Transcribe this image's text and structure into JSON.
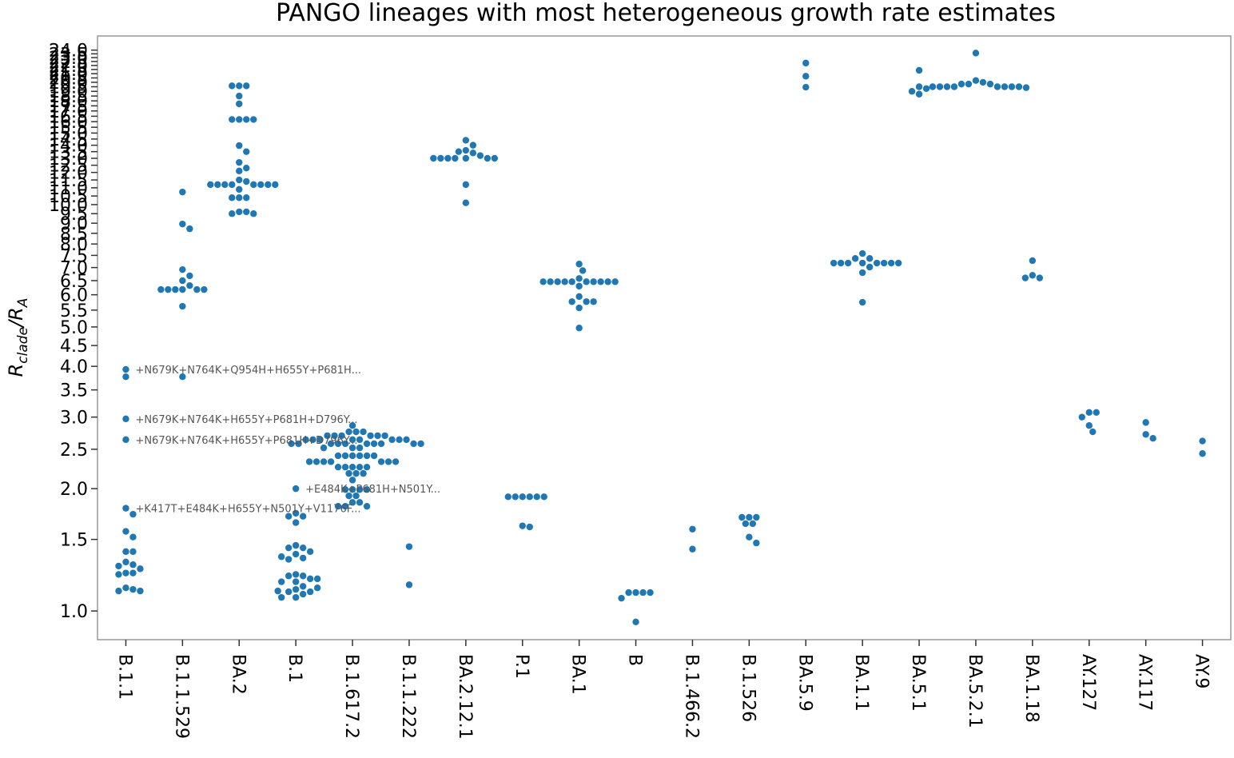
{
  "chart_data": {
    "type": "swarm",
    "title": "PANGO lineages with most heterogeneous growth rate estimates",
    "y_label_parts": [
      "R",
      "clade",
      "/R",
      "A"
    ],
    "color": "#1f77b4",
    "log_scale": true,
    "ylim": [
      0.85,
      26
    ],
    "yticks": [
      {
        "value": 1,
        "label": "1.0"
      },
      {
        "value": 1.5,
        "label": "1.5"
      },
      {
        "value": 2,
        "label": "2.0"
      },
      {
        "value": 2.5,
        "label": "2.5"
      },
      {
        "value": 3,
        "label": "3.0"
      },
      {
        "value": 3.5,
        "label": "3.5"
      },
      {
        "value": 4,
        "label": "4.0"
      },
      {
        "value": 4.5,
        "label": "4.5"
      },
      {
        "value": 5,
        "label": "5.0"
      },
      {
        "value": 5.5,
        "label": "5.5"
      },
      {
        "value": 6,
        "label": "6.0"
      },
      {
        "value": 6.5,
        "label": "6.5"
      },
      {
        "value": 7,
        "label": "7.0"
      },
      {
        "value": 7.5,
        "label": "7.5"
      },
      {
        "value": 8,
        "label": "8.0"
      },
      {
        "value": 8.5,
        "label": "8.5"
      },
      {
        "value": 9,
        "label": "9.0"
      },
      {
        "value": 9.5,
        "label": "9.5"
      },
      {
        "value": 10,
        "label": "10.0"
      },
      {
        "value": 10.5,
        "label": "10.5"
      },
      {
        "value": 11,
        "label": "11.0"
      },
      {
        "value": 11.5,
        "label": "11.5"
      },
      {
        "value": 12,
        "label": "12.0"
      },
      {
        "value": 12.5,
        "label": "12.5"
      },
      {
        "value": 13,
        "label": "13.0"
      },
      {
        "value": 13.5,
        "label": "13.5"
      },
      {
        "value": 14,
        "label": "14.0"
      },
      {
        "value": 14.5,
        "label": "14.5"
      },
      {
        "value": 15,
        "label": "15.0"
      },
      {
        "value": 15.5,
        "label": "15.5"
      },
      {
        "value": 16,
        "label": "16.0"
      },
      {
        "value": 16.5,
        "label": "16.5"
      },
      {
        "value": 17,
        "label": "17.0"
      },
      {
        "value": 17.5,
        "label": "17.5"
      },
      {
        "value": 18,
        "label": "18.0"
      },
      {
        "value": 18.5,
        "label": "18.5"
      },
      {
        "value": 19,
        "label": "19.0"
      },
      {
        "value": 19.5,
        "label": "19.5"
      },
      {
        "value": 20,
        "label": "20.0"
      },
      {
        "value": 20.5,
        "label": "20.5"
      },
      {
        "value": 21,
        "label": "21.0"
      },
      {
        "value": 21.5,
        "label": "21.5"
      },
      {
        "value": 22,
        "label": "22.0"
      },
      {
        "value": 22.5,
        "label": "22.5"
      },
      {
        "value": 23,
        "label": "23.0"
      },
      {
        "value": 23.5,
        "label": "23.5"
      },
      {
        "value": 24,
        "label": "24.0"
      }
    ],
    "categories": [
      "B.1.1",
      "B.1.1.529",
      "BA.2",
      "B.1",
      "B.1.617.2",
      "B.1.1.222",
      "BA.2.12.1",
      "P.1",
      "BA.1",
      "B",
      "B.1.466.2",
      "B.1.526",
      "BA.5.9",
      "BA.1.1",
      "BA.5.1",
      "BA.5.2.1",
      "BA.1.18",
      "AY.127",
      "AY.117",
      "AY.9"
    ],
    "values": [
      [
        3.93,
        3.77,
        2.97,
        2.64,
        1.79,
        1.73,
        1.57,
        1.52,
        1.4,
        1.4,
        1.32,
        1.3,
        1.29,
        1.27,
        1.24,
        1.24,
        1.23,
        1.14,
        1.13,
        1.12,
        1.12
      ],
      [
        10.74,
        8.96,
        8.72,
        6.92,
        6.68,
        6.5,
        6.32,
        6.18,
        6.18,
        6.18,
        6.18,
        6.18,
        6.18,
        5.62,
        3.77
      ],
      [
        19.6,
        19.6,
        19.6,
        18.5,
        17.7,
        16.2,
        16.2,
        16.2,
        16.2,
        13.97,
        13.5,
        12.7,
        12.3,
        12.1,
        11.5,
        11.4,
        11.2,
        11.2,
        11.2,
        11.2,
        11.2,
        11.2,
        11.2,
        11.2,
        10.9,
        10.4,
        10.4,
        10.4,
        9.6,
        9.6,
        9.5,
        9.5
      ],
      [
        2.0,
        1.74,
        1.71,
        1.71,
        1.65,
        1.45,
        1.43,
        1.43,
        1.4,
        1.38,
        1.35,
        1.34,
        1.23,
        1.22,
        1.22,
        1.2,
        1.18,
        1.18,
        1.15,
        1.13,
        1.115,
        1.115,
        1.1,
        1.08,
        1.08,
        1.12,
        1.14,
        1.2,
        1.36
      ],
      [
        2.86,
        2.76,
        2.76,
        2.76,
        2.7,
        2.7,
        2.7,
        2.7,
        2.7,
        2.7,
        2.64,
        2.64,
        2.64,
        2.64,
        2.64,
        2.64,
        2.64,
        2.64,
        2.58,
        2.58,
        2.58,
        2.58,
        2.58,
        2.58,
        2.58,
        2.58,
        2.58,
        2.58,
        2.52,
        2.52,
        2.52,
        2.41,
        2.41,
        2.41,
        2.41,
        2.41,
        2.41,
        2.33,
        2.33,
        2.33,
        2.33,
        2.33,
        2.33,
        2.33,
        2.26,
        2.26,
        2.26,
        2.26,
        2.26,
        2.18,
        2.18,
        2.18,
        2.1,
        1.99,
        1.99,
        1.99,
        1.99,
        1.92,
        1.92,
        1.85,
        1.85,
        1.81,
        1.81,
        1.81
      ],
      [
        1.44,
        1.16
      ],
      [
        14.4,
        14.0,
        13.6,
        13.5,
        13.4,
        13.2,
        13.0,
        13.0,
        13.0,
        13.0,
        13.0,
        13.0,
        13.0,
        11.2,
        10.1
      ],
      [
        1.91,
        1.91,
        1.91,
        1.91,
        1.91,
        1.91,
        1.62,
        1.61
      ],
      [
        7.14,
        6.88,
        6.58,
        6.46,
        6.46,
        6.46,
        6.46,
        6.46,
        6.46,
        6.46,
        6.46,
        6.46,
        6.46,
        6.3,
        5.94,
        5.77,
        5.77,
        5.77,
        5.57,
        4.97
      ],
      [
        1.11,
        1.11,
        1.11,
        1.11,
        1.075,
        0.94
      ],
      [
        1.59,
        1.42
      ],
      [
        1.7,
        1.7,
        1.7,
        1.64,
        1.64,
        1.52,
        1.47
      ],
      [
        22.3,
        20.7,
        19.45
      ],
      [
        7.58,
        7.37,
        7.37,
        7.18,
        7.18,
        7.18,
        7.18,
        7.18,
        7.18,
        7.18,
        7.18,
        7.02,
        6.8,
        5.75
      ],
      [
        21.4,
        19.5,
        19.3,
        19.0,
        18.7
      ],
      [
        23.6,
        20.2,
        20.0,
        19.8,
        19.8,
        19.8,
        19.5,
        19.5,
        19.5,
        19.5,
        19.5,
        19.5,
        19.5,
        19.5,
        19.4
      ],
      [
        7.28,
        6.7,
        6.6,
        6.6
      ],
      [
        3.08,
        3.08,
        3.0,
        2.86,
        2.76
      ],
      [
        2.91,
        2.72,
        2.66
      ],
      [
        2.62,
        2.44
      ]
    ],
    "annotations": [
      {
        "text": "+N679K+N764K+Q954H+H655Y+P681H...",
        "x": "B.1.1",
        "y": 3.93
      },
      {
        "text": "+N679K+N764K+H655Y+P681H+D796Y...",
        "x": "B.1.1",
        "y": 2.97
      },
      {
        "text": "+N679K+N764K+H655Y+P681H+D796Y...",
        "x": "B.1.1",
        "y": 2.64
      },
      {
        "text": "+K417T+E484K+H655Y+N501Y+V1176F...",
        "x": "B.1.1",
        "y": 1.79
      },
      {
        "text": "+E484K+P681H+N501Y...",
        "x": "B.1",
        "y": 2.0
      }
    ]
  }
}
